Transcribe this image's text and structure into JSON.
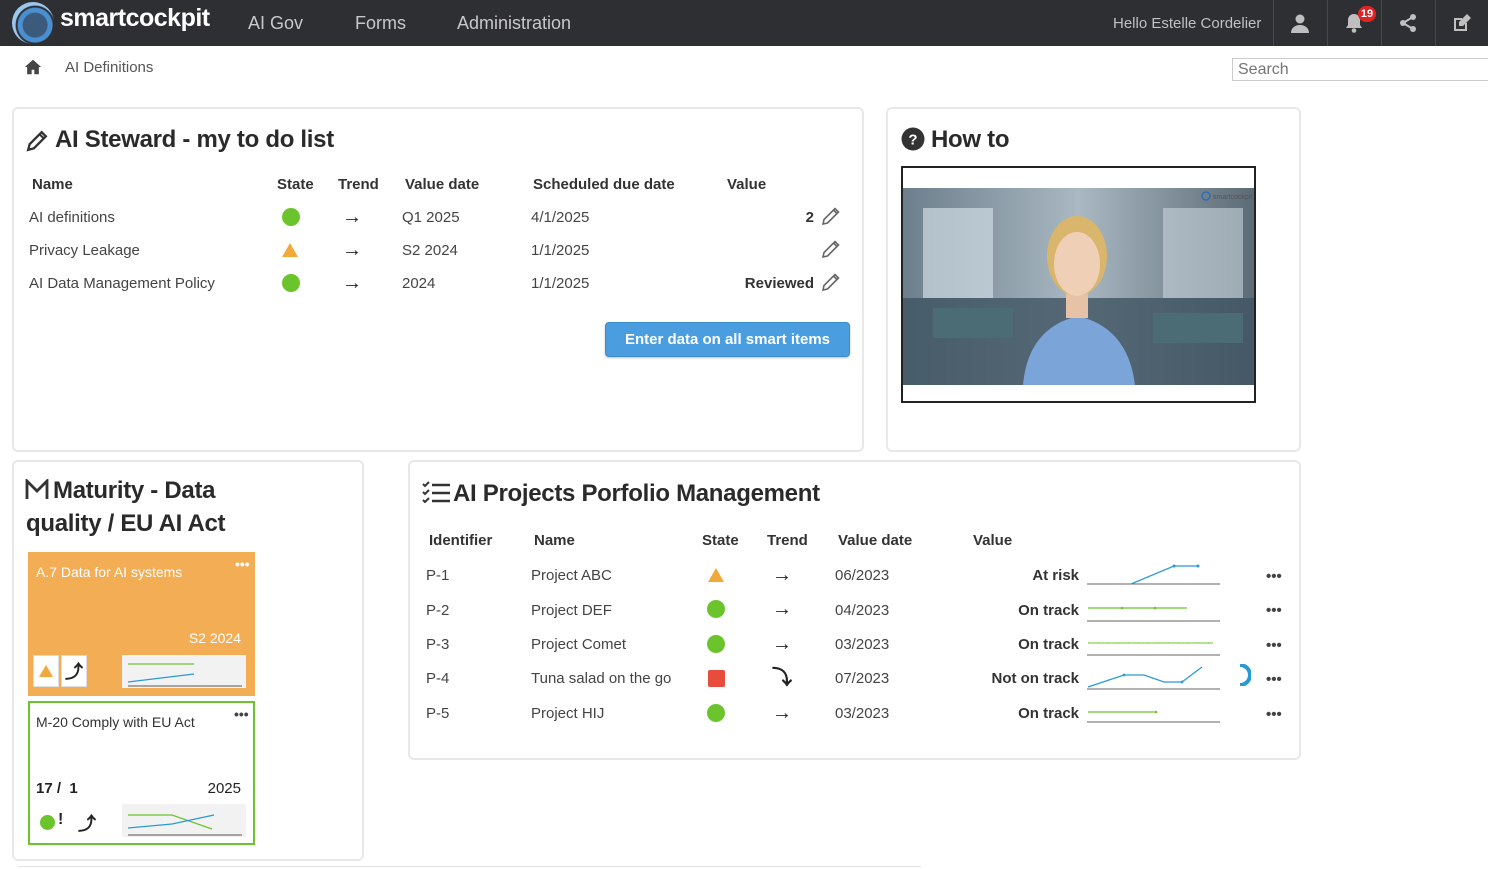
{
  "app": {
    "logo_text": "smartcockpit"
  },
  "nav": [
    {
      "label": "AI Gov"
    },
    {
      "label": "Forms"
    },
    {
      "label": "Administration"
    }
  ],
  "user": {
    "greeting": "Hello Estelle Cordelier"
  },
  "notifications": {
    "count": "19"
  },
  "icons": [
    "user-icon",
    "bell-icon",
    "share-icon",
    "edit-icon",
    "home-icon",
    "pencil-icon",
    "help-icon",
    "list-icon"
  ],
  "breadcrumb": {
    "current": "AI Definitions"
  },
  "search": {
    "placeholder": "Search"
  },
  "todo": {
    "title": "AI Steward - my to do list",
    "headers": {
      "name": "Name",
      "state": "State",
      "trend": "Trend",
      "value_date": "Value date",
      "due": "Scheduled due date",
      "value": "Value"
    },
    "rows": [
      {
        "name": "AI definitions",
        "state": "green",
        "trend": "→",
        "value_date": "Q1 2025",
        "due": "4/1/2025",
        "value": "2"
      },
      {
        "name": "Privacy Leakage",
        "state": "orange",
        "trend": "→",
        "value_date": "S2 2024",
        "due": "1/1/2025",
        "value": ""
      },
      {
        "name": "AI Data Management Policy",
        "state": "green",
        "trend": "→",
        "value_date": "2024",
        "due": "1/1/2025",
        "value": "Reviewed"
      }
    ],
    "button_label": "Enter data on all smart items"
  },
  "howto": {
    "title": "How to",
    "video_watermark": "smartcockpit"
  },
  "maturity": {
    "title_line1": "Maturity - Data",
    "title_line2": "quality / EU AI Act",
    "cards": [
      {
        "title": "A.7 Data for AI systems",
        "period": "S2 2024",
        "menu": "•••"
      },
      {
        "title": "M-20 Comply with EU Act",
        "score": "17 /  1",
        "period": "2025",
        "menu": "•••"
      }
    ]
  },
  "portfolio": {
    "title": "AI Projects Porfolio Management",
    "headers": {
      "id": "Identifier",
      "name": "Name",
      "state": "State",
      "trend": "Trend",
      "value_date": "Value date",
      "value": "Value"
    },
    "rows": [
      {
        "id": "P-1",
        "name": "Project ABC",
        "state": "orange",
        "trend": "→",
        "value_date": "06/2023",
        "value": "At risk",
        "menu": "•••"
      },
      {
        "id": "P-2",
        "name": "Project DEF",
        "state": "green",
        "trend": "→",
        "value_date": "04/2023",
        "value": "On track",
        "menu": "•••"
      },
      {
        "id": "P-3",
        "name": "Project Comet",
        "state": "green",
        "trend": "→",
        "value_date": "03/2023",
        "value": "On track",
        "menu": "•••"
      },
      {
        "id": "P-4",
        "name": "Tuna salad on the go",
        "state": "red",
        "trend": "⤵",
        "value_date": "07/2023",
        "value": "Not on track",
        "menu": "•••"
      },
      {
        "id": "P-5",
        "name": "Project HIJ",
        "state": "green",
        "trend": "→",
        "value_date": "03/2023",
        "value": "On track",
        "menu": "•••"
      }
    ]
  },
  "colors": {
    "green": "#6cc42d",
    "orange": "#f2a93b",
    "red": "#e74c3c",
    "blue": "#4a9ee0",
    "topbar": "#2d2f33"
  }
}
